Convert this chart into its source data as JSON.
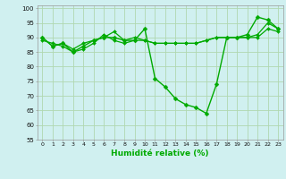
{
  "xlabel": "Humidité relative (%)",
  "ylabel": "",
  "bg_color": "#d0f0f0",
  "grid_color": "#b0d8b0",
  "line_color": "#00aa00",
  "xlim": [
    -0.5,
    23.5
  ],
  "ylim": [
    55,
    101
  ],
  "yticks": [
    55,
    60,
    65,
    70,
    75,
    80,
    85,
    90,
    95,
    100
  ],
  "xticks": [
    0,
    1,
    2,
    3,
    4,
    5,
    6,
    7,
    8,
    9,
    10,
    11,
    12,
    13,
    14,
    15,
    16,
    17,
    18,
    19,
    20,
    21,
    22,
    23
  ],
  "series": [
    {
      "x": [
        0,
        1,
        2,
        3,
        4,
        5,
        6,
        7,
        8,
        9,
        10,
        11,
        12,
        13,
        14,
        15,
        16,
        17,
        18,
        19,
        20,
        21,
        22,
        23
      ],
      "y": [
        90,
        87,
        88,
        85,
        87,
        89,
        90,
        90,
        89,
        89,
        93,
        76,
        73,
        69,
        67,
        66,
        64,
        74,
        90,
        90,
        91,
        97,
        96,
        93
      ]
    },
    {
      "x": [
        0,
        1,
        2,
        3,
        4,
        5,
        6,
        7,
        8,
        9,
        10,
        11,
        12,
        13,
        14,
        15,
        16,
        17,
        18,
        19,
        20,
        21,
        22,
        23
      ],
      "y": [
        89,
        88,
        87,
        85,
        86,
        88,
        91,
        89,
        88,
        89,
        89,
        88,
        88,
        88,
        88,
        88,
        89,
        90,
        90,
        90,
        90,
        91,
        95,
        93
      ]
    },
    {
      "x": [
        0,
        1,
        2,
        3,
        4,
        5,
        6,
        7,
        8,
        9,
        10,
        11,
        12,
        13,
        14,
        15,
        16,
        17,
        18,
        19,
        20,
        21,
        22,
        23
      ],
      "y": [
        90,
        87,
        88,
        86,
        88,
        89,
        90,
        92,
        89,
        90,
        89,
        88,
        88,
        88,
        88,
        88,
        89,
        90,
        90,
        90,
        90,
        90,
        93,
        92
      ]
    }
  ]
}
